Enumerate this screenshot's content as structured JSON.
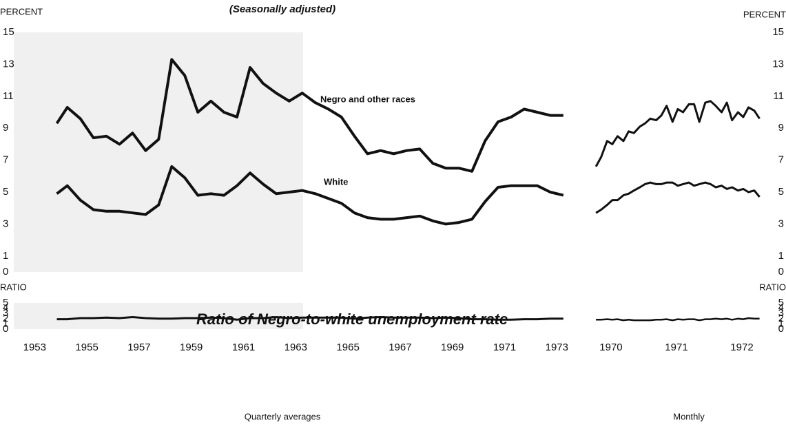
{
  "chart_data": [
    {
      "type": "line",
      "y_label": "PERCENT",
      "subtitle": "(Seasonally adjusted)",
      "ylim": [
        0,
        15
      ],
      "yticks": [
        0,
        1,
        3,
        5,
        7,
        9,
        11,
        13,
        15
      ],
      "xlim": [
        1952.2,
        1974.1
      ],
      "x": [
        1953.85,
        1954.25,
        1954.75,
        1955.25,
        1955.75,
        1956.25,
        1956.75,
        1957.25,
        1957.75,
        1958.25,
        1958.75,
        1959.25,
        1959.75,
        1960.25,
        1960.75,
        1961.25,
        1961.75,
        1962.25,
        1962.75,
        1963.25,
        1963.75,
        1964.25,
        1964.75,
        1965.25,
        1965.75,
        1966.25,
        1966.75,
        1967.25,
        1967.75,
        1968.25,
        1968.75,
        1969.25,
        1969.75,
        1970.25,
        1970.75,
        1971.25,
        1971.75,
        1972.25,
        1972.75,
        1973.25
      ],
      "series": [
        {
          "name": "Negro and other races",
          "color": "#111111",
          "values": [
            9.3,
            10.3,
            9.6,
            8.4,
            8.5,
            8.0,
            8.7,
            7.6,
            8.3,
            13.3,
            12.3,
            10.0,
            10.7,
            10.0,
            9.7,
            12.8,
            11.8,
            11.2,
            10.7,
            11.2,
            10.6,
            10.2,
            9.7,
            8.5,
            7.4,
            7.6,
            7.4,
            7.6,
            7.7,
            6.8,
            6.5,
            6.5,
            6.3,
            8.2,
            9.4,
            9.7,
            10.2,
            10.0,
            9.8,
            9.8
          ]
        },
        {
          "name": "White",
          "color": "#111111",
          "values": [
            4.9,
            5.4,
            4.5,
            3.9,
            3.8,
            3.8,
            3.7,
            3.6,
            4.2,
            6.6,
            5.9,
            4.8,
            4.9,
            4.8,
            5.4,
            6.2,
            5.5,
            4.9,
            5.0,
            5.1,
            4.9,
            4.6,
            4.3,
            3.7,
            3.4,
            3.3,
            3.3,
            3.4,
            3.5,
            3.2,
            3.0,
            3.1,
            3.3,
            4.4,
            5.3,
            5.4,
            5.4,
            5.4,
            5.0,
            4.8
          ]
        }
      ]
    },
    {
      "type": "line",
      "y_label": "PERCENT",
      "ylim": [
        0,
        15
      ],
      "yticks": [
        0,
        1,
        3,
        5,
        7,
        9,
        11,
        13,
        15
      ],
      "xlim": [
        1969.716,
        1972.4
      ],
      "x": [
        1969.77,
        1969.85,
        1969.94,
        1970.02,
        1970.1,
        1970.19,
        1970.27,
        1970.35,
        1970.44,
        1970.52,
        1970.6,
        1970.69,
        1970.77,
        1970.85,
        1970.94,
        1971.02,
        1971.1,
        1971.19,
        1971.27,
        1971.35,
        1971.44,
        1971.52,
        1971.6,
        1971.69,
        1971.77,
        1971.85,
        1971.94,
        1972.02,
        1972.1,
        1972.19,
        1972.27
      ],
      "series": [
        {
          "color": "#111111",
          "values": [
            6.6,
            7.2,
            8.2,
            8.0,
            8.5,
            8.2,
            8.8,
            8.7,
            9.1,
            9.3,
            9.6,
            9.5,
            9.8,
            10.4,
            9.4,
            10.2,
            10.0,
            10.5,
            10.5,
            9.4,
            10.6,
            10.7,
            10.4,
            10.0,
            10.6,
            9.5,
            10.0,
            9.7,
            10.3,
            10.1,
            9.6
          ]
        },
        {
          "color": "#111111",
          "values": [
            3.7,
            3.9,
            4.2,
            4.5,
            4.5,
            4.8,
            4.9,
            5.1,
            5.3,
            5.5,
            5.6,
            5.5,
            5.5,
            5.6,
            5.6,
            5.4,
            5.5,
            5.6,
            5.4,
            5.5,
            5.6,
            5.5,
            5.3,
            5.4,
            5.2,
            5.3,
            5.1,
            5.2,
            5.0,
            5.1,
            4.7
          ]
        }
      ]
    },
    {
      "type": "line",
      "y_label": "RATIO",
      "annotation": "Ratio of Negro-to-white unemployment rate",
      "x_label": "Quarterly averages",
      "ylim": [
        0,
        5
      ],
      "yticks": [
        0,
        1,
        2,
        3,
        4,
        5
      ],
      "xlim": [
        1952.2,
        1974.1
      ],
      "xticks": [
        1953,
        1955,
        1957,
        1959,
        1961,
        1963,
        1965,
        1967,
        1969,
        1971,
        1973
      ],
      "x": [
        1953.85,
        1954.25,
        1954.75,
        1955.25,
        1955.75,
        1956.25,
        1956.75,
        1957.25,
        1957.75,
        1958.25,
        1958.75,
        1959.25,
        1959.75,
        1960.25,
        1960.75,
        1961.25,
        1961.75,
        1962.25,
        1962.75,
        1963.25,
        1963.75,
        1964.25,
        1964.75,
        1965.25,
        1965.75,
        1966.25,
        1966.75,
        1967.25,
        1967.75,
        1968.25,
        1968.75,
        1969.25,
        1969.75,
        1970.25,
        1970.75,
        1971.25,
        1971.75,
        1972.25,
        1972.75,
        1973.25
      ],
      "series": [
        {
          "color": "#111111",
          "values": [
            1.9,
            1.9,
            2.1,
            2.1,
            2.2,
            2.1,
            2.3,
            2.1,
            2.0,
            2.0,
            2.1,
            2.1,
            2.2,
            2.1,
            1.8,
            2.1,
            2.1,
            2.3,
            2.1,
            2.2,
            2.2,
            2.2,
            2.2,
            2.0,
            2.2,
            2.3,
            2.2,
            2.2,
            2.2,
            2.1,
            2.2,
            2.1,
            1.9,
            1.9,
            1.8,
            1.8,
            1.9,
            1.9,
            2.0,
            2.0
          ]
        }
      ]
    },
    {
      "type": "line",
      "y_label": "RATIO",
      "x_label": "Monthly",
      "ylim": [
        0,
        5
      ],
      "yticks": [
        0,
        1,
        2,
        3,
        4,
        5
      ],
      "xlim": [
        1969.716,
        1972.4
      ],
      "xticks": [
        1970,
        1971,
        1972
      ],
      "x": [
        1969.77,
        1969.85,
        1969.94,
        1970.02,
        1970.1,
        1970.19,
        1970.27,
        1970.35,
        1970.44,
        1970.52,
        1970.6,
        1970.69,
        1970.77,
        1970.85,
        1970.94,
        1971.02,
        1971.1,
        1971.19,
        1971.27,
        1971.35,
        1971.44,
        1971.52,
        1971.6,
        1971.69,
        1971.77,
        1971.85,
        1971.94,
        1972.02,
        1972.1,
        1972.19,
        1972.27
      ],
      "series": [
        {
          "color": "#111111",
          "values": [
            1.8,
            1.8,
            1.9,
            1.8,
            1.9,
            1.7,
            1.8,
            1.7,
            1.7,
            1.7,
            1.7,
            1.8,
            1.8,
            1.9,
            1.7,
            1.9,
            1.8,
            1.9,
            1.9,
            1.7,
            1.9,
            1.9,
            2.0,
            1.9,
            2.0,
            1.8,
            2.0,
            1.9,
            2.1,
            2.0,
            2.0
          ]
        }
      ]
    }
  ]
}
